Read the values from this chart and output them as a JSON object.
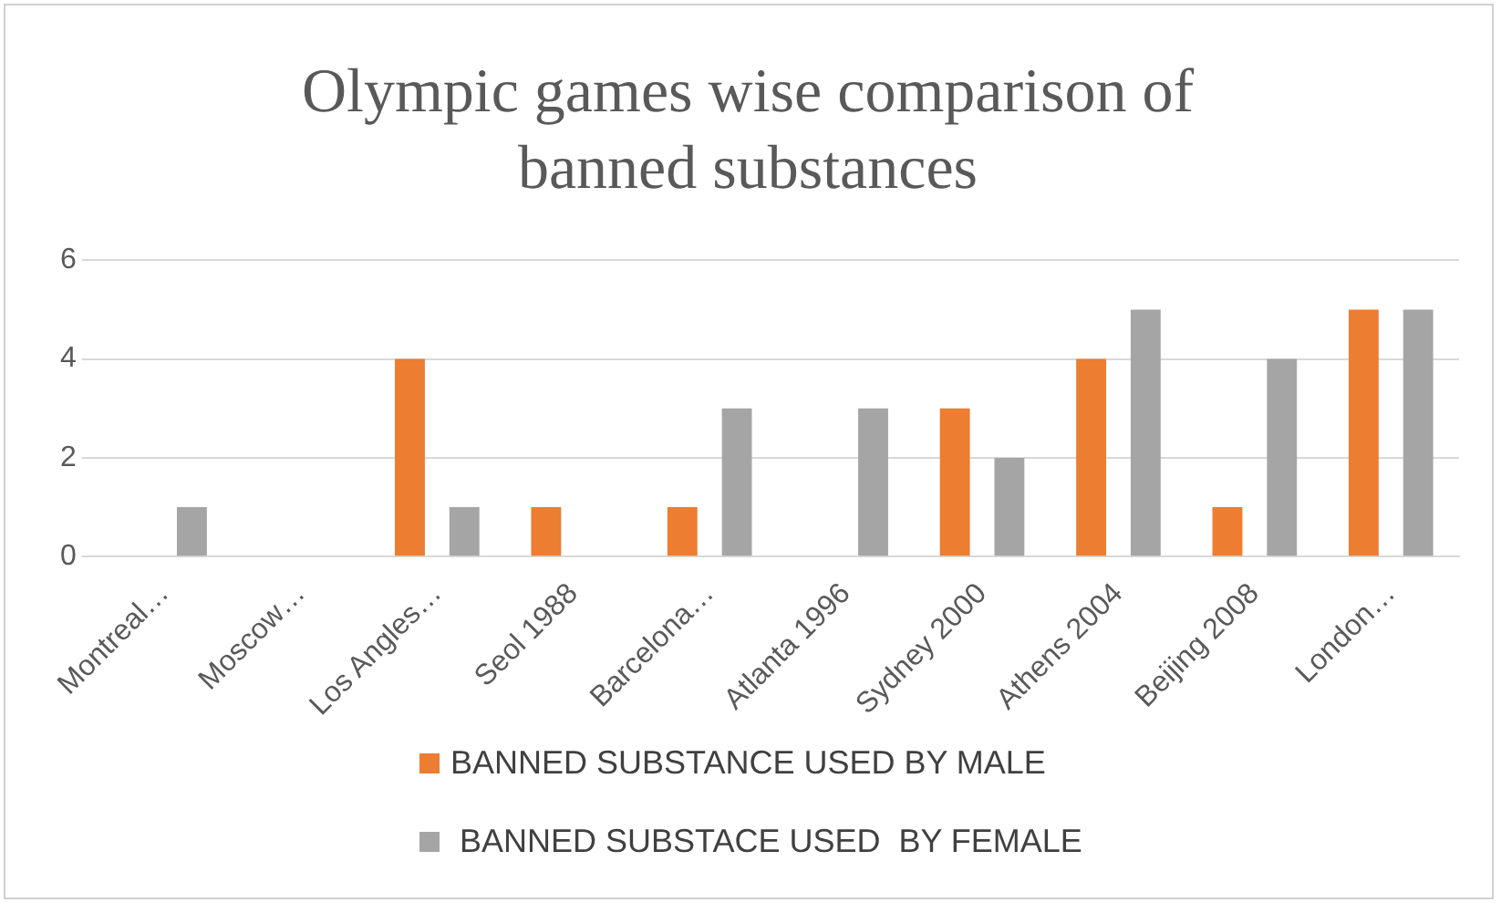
{
  "chart_data": {
    "type": "bar",
    "title": "Olympic games wise comparison of banned substances",
    "categories": [
      "Montreal…",
      "Moscow…",
      "Los Angles…",
      "Seol 1988",
      "Barcelona…",
      "Atlanta 1996",
      "Sydney 2000",
      "Athens 2004",
      "Beijing 2008",
      "London…"
    ],
    "series": [
      {
        "name": "BANNED SUBSTANCE USED BY MALE",
        "color": "#ed7d31",
        "values": [
          0,
          0,
          4,
          1,
          1,
          0,
          3,
          4,
          1,
          5
        ]
      },
      {
        "name": " BANNED SUBSTACE USED  BY FEMALE",
        "color": "#a5a5a5",
        "values": [
          1,
          0,
          1,
          0,
          3,
          3,
          2,
          5,
          4,
          5
        ]
      }
    ],
    "ylim": [
      0,
      6
    ],
    "yticks": [
      0,
      2,
      4,
      6
    ],
    "grid": "y",
    "legend": "bottom"
  }
}
